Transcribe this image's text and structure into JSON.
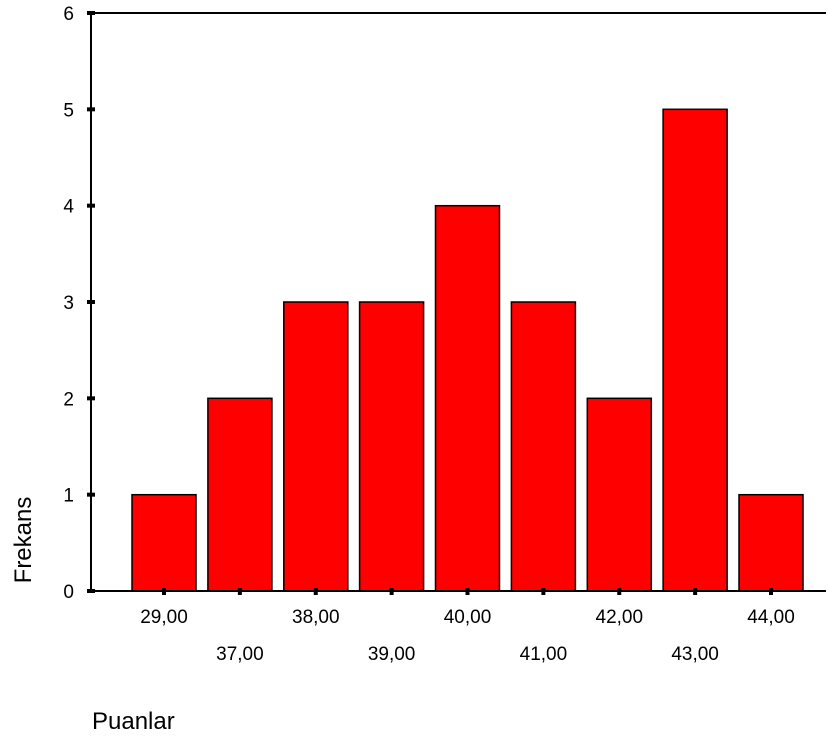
{
  "chart_data": {
    "type": "bar",
    "title": "",
    "xlabel": "Puanlar",
    "ylabel": "Frekans",
    "categories": [
      "29,00",
      "37,00",
      "38,00",
      "39,00",
      "40,00",
      "41,00",
      "42,00",
      "43,00",
      "44,00"
    ],
    "values": [
      1,
      2,
      3,
      3,
      4,
      3,
      2,
      5,
      1
    ],
    "ylim": [
      0,
      6
    ],
    "yticks": [
      "0",
      "1",
      "2",
      "3",
      "4",
      "5",
      "6"
    ],
    "bar_color": "#FF0000",
    "bar_edge_color": "#000000",
    "grid": false,
    "legend": "none"
  }
}
